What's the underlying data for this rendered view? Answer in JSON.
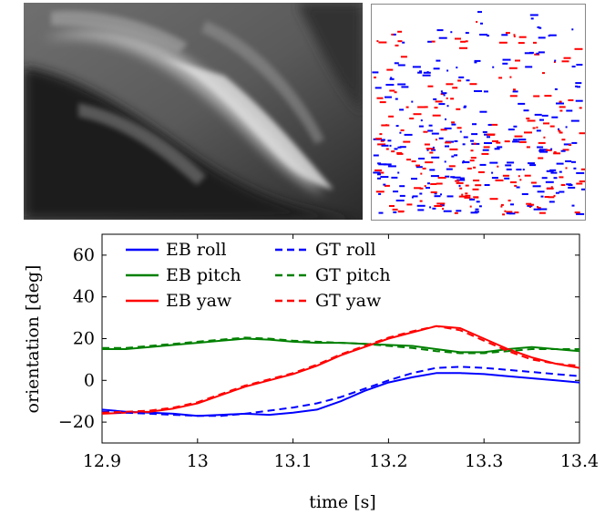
{
  "figure": {
    "left_image": "grayscale motion-blurred photograph",
    "right_image": "event frame with blue and red event pixels",
    "event_colors": {
      "positive": "#0000ff",
      "negative": "#ff0000"
    }
  },
  "chart_data": {
    "type": "line",
    "xlabel": "time [s]",
    "ylabel": "orientation [deg]",
    "xlim": [
      12.9,
      13.4
    ],
    "ylim": [
      -30,
      70
    ],
    "xticks": [
      12.9,
      13.0,
      13.1,
      13.2,
      13.3,
      13.4
    ],
    "xtick_labels": [
      "12.9",
      "13",
      "13.1",
      "13.2",
      "13.3",
      "13.4"
    ],
    "yticks": [
      -20,
      0,
      20,
      40,
      60
    ],
    "ytick_labels": [
      "−20",
      "0",
      "20",
      "40",
      "60"
    ],
    "grid": false,
    "legend_position": "top-left",
    "series": [
      {
        "name": "EB roll",
        "color": "#0000ff",
        "dash": "solid",
        "x": [
          12.9,
          12.925,
          12.95,
          12.975,
          13.0,
          13.025,
          13.05,
          13.075,
          13.1,
          13.125,
          13.15,
          13.175,
          13.2,
          13.225,
          13.25,
          13.275,
          13.3,
          13.325,
          13.35,
          13.375,
          13.4
        ],
        "y": [
          -14,
          -15,
          -15.5,
          -16,
          -17,
          -16.5,
          -16,
          -16.5,
          -15.5,
          -14,
          -10,
          -5,
          -1,
          1.5,
          3.5,
          3.5,
          3,
          2,
          1,
          0,
          -1
        ]
      },
      {
        "name": "EB pitch",
        "color": "#008000",
        "dash": "solid",
        "x": [
          12.9,
          12.925,
          12.95,
          12.975,
          13.0,
          13.025,
          13.05,
          13.075,
          13.1,
          13.125,
          13.15,
          13.175,
          13.2,
          13.225,
          13.25,
          13.275,
          13.3,
          13.325,
          13.35,
          13.375,
          13.4
        ],
        "y": [
          15,
          15,
          16,
          17,
          18,
          19,
          20,
          19.5,
          18.5,
          18,
          18,
          17.5,
          17,
          16.5,
          15,
          13.5,
          13.5,
          15,
          16,
          15,
          14
        ]
      },
      {
        "name": "EB yaw",
        "color": "#ff0000",
        "dash": "solid",
        "x": [
          12.9,
          12.925,
          12.95,
          12.975,
          13.0,
          13.025,
          13.05,
          13.075,
          13.1,
          13.125,
          13.15,
          13.175,
          13.2,
          13.225,
          13.25,
          13.275,
          13.3,
          13.325,
          13.35,
          13.375,
          13.4
        ],
        "y": [
          -16,
          -15.5,
          -15,
          -13.5,
          -11,
          -7,
          -3,
          0,
          3,
          7,
          12,
          16,
          20,
          23,
          26,
          25,
          20,
          15,
          11,
          8,
          6
        ]
      },
      {
        "name": "GT roll",
        "color": "#0000ff",
        "dash": "dashed",
        "x": [
          12.9,
          12.925,
          12.95,
          12.975,
          13.0,
          13.025,
          13.05,
          13.075,
          13.1,
          13.125,
          13.15,
          13.175,
          13.2,
          13.225,
          13.25,
          13.275,
          13.3,
          13.325,
          13.35,
          13.375,
          13.4
        ],
        "y": [
          -15,
          -15.5,
          -16,
          -16.5,
          -17,
          -17,
          -16,
          -14.5,
          -13,
          -11,
          -8,
          -4,
          0,
          3.5,
          6,
          6.5,
          6,
          5,
          4,
          3,
          2
        ]
      },
      {
        "name": "GT pitch",
        "color": "#008000",
        "dash": "dashed",
        "x": [
          12.9,
          12.925,
          12.95,
          12.975,
          13.0,
          13.025,
          13.05,
          13.075,
          13.1,
          13.125,
          13.15,
          13.175,
          13.2,
          13.225,
          13.25,
          13.275,
          13.3,
          13.325,
          13.35,
          13.375,
          13.4
        ],
        "y": [
          15.5,
          15.5,
          16.5,
          17.5,
          18.5,
          19.5,
          20.5,
          20,
          19,
          18.5,
          18,
          17.5,
          16.5,
          15.5,
          14,
          13,
          13,
          14,
          15,
          15,
          15
        ]
      },
      {
        "name": "GT yaw",
        "color": "#ff0000",
        "dash": "dashed",
        "x": [
          12.9,
          12.925,
          12.95,
          12.975,
          13.0,
          13.025,
          13.05,
          13.075,
          13.1,
          13.125,
          13.15,
          13.175,
          13.2,
          13.225,
          13.25,
          13.275,
          13.3,
          13.325,
          13.35,
          13.375,
          13.4
        ],
        "y": [
          -15.5,
          -15,
          -14.5,
          -13,
          -10.5,
          -6.5,
          -2.5,
          0.5,
          3.5,
          7.5,
          12.5,
          16.5,
          20.5,
          23.5,
          26,
          24,
          19,
          14,
          10,
          8,
          7
        ]
      }
    ]
  }
}
